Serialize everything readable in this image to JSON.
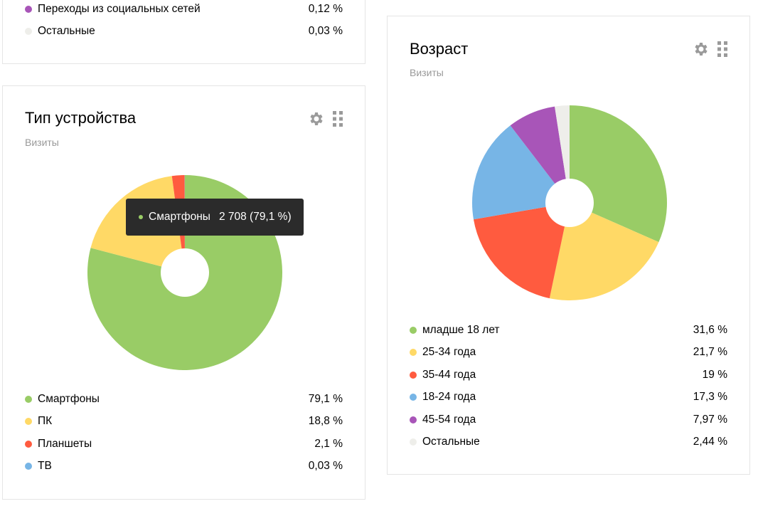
{
  "colors": {
    "green": "#99cc66",
    "yellow": "#ffd966",
    "red": "#ff5b3f",
    "blue": "#77b5e6",
    "purple": "#a855b8",
    "light": "#eeeeea"
  },
  "top_card": {
    "items": [
      {
        "label": "Переходы из социальных сетей",
        "value": "0,12 %",
        "color": "#a855b8"
      },
      {
        "label": "Остальные",
        "value": "0,03 %",
        "color": "#eeeeea"
      }
    ]
  },
  "device_card": {
    "title": "Тип устройства",
    "subtitle": "Визиты",
    "tooltip": {
      "label": "Смартфоны",
      "value": "2 708 (79,1 %)",
      "color": "#99cc66"
    },
    "legend": [
      {
        "label": "Смартфоны",
        "value": "79,1 %",
        "color": "#99cc66"
      },
      {
        "label": "ПК",
        "value": "18,8 %",
        "color": "#ffd966"
      },
      {
        "label": "Планшеты",
        "value": "2,1 %",
        "color": "#ff5b3f"
      },
      {
        "label": "ТВ",
        "value": "0,03 %",
        "color": "#77b5e6"
      }
    ]
  },
  "age_card": {
    "title": "Возраст",
    "subtitle": "Визиты",
    "legend": [
      {
        "label": "младше 18 лет",
        "value": "31,6 %",
        "color": "#99cc66"
      },
      {
        "label": "25-34 года",
        "value": "21,7 %",
        "color": "#ffd966"
      },
      {
        "label": "35-44 года",
        "value": "19 %",
        "color": "#ff5b3f"
      },
      {
        "label": "18-24 года",
        "value": "17,3 %",
        "color": "#77b5e6"
      },
      {
        "label": "45-54 года",
        "value": "7,97 %",
        "color": "#a855b8"
      },
      {
        "label": "Остальные",
        "value": "2,44 %",
        "color": "#eeeeea"
      }
    ]
  },
  "chart_data": [
    {
      "type": "pie",
      "title": "Тип устройства",
      "subtitle": "Визиты",
      "categories": [
        "Смартфоны",
        "ПК",
        "Планшеты",
        "ТВ"
      ],
      "values": [
        79.1,
        18.8,
        2.1,
        0.03
      ],
      "colors": [
        "#99cc66",
        "#ffd966",
        "#ff5b3f",
        "#77b5e6"
      ],
      "hovered": "Смартфоны"
    },
    {
      "type": "pie",
      "title": "Возраст",
      "subtitle": "Визиты",
      "categories": [
        "младше 18 лет",
        "25-34 года",
        "35-44 года",
        "18-24 года",
        "45-54 года",
        "Остальные"
      ],
      "values": [
        31.6,
        21.7,
        19,
        17.3,
        7.97,
        2.44
      ],
      "colors": [
        "#99cc66",
        "#ffd966",
        "#ff5b3f",
        "#77b5e6",
        "#a855b8",
        "#eeeeea"
      ]
    }
  ]
}
